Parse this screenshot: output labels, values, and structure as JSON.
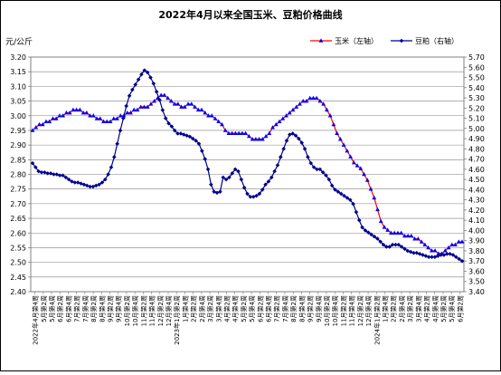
{
  "chart_data": {
    "type": "line",
    "title": "2022年4月以来全国玉米、豆粕价格曲线",
    "ylabel": "元/公斤",
    "y_left_ticks": [
      "3.20",
      "3.15",
      "3.10",
      "3.05",
      "3.00",
      "2.95",
      "2.90",
      "2.85",
      "2.80",
      "2.75",
      "2.70",
      "2.65",
      "2.60",
      "2.55",
      "2.50",
      "2.45",
      "2.40"
    ],
    "y_right_ticks": [
      "5.70",
      "5.60",
      "5.50",
      "5.40",
      "5.30",
      "5.20",
      "5.10",
      "5.00",
      "4.90",
      "4.80",
      "4.70",
      "4.60",
      "4.50",
      "4.40",
      "4.30",
      "4.20",
      "4.10",
      "4.00",
      "3.90",
      "3.80",
      "3.70",
      "3.60",
      "3.50",
      "3.40"
    ],
    "ylim_left": [
      2.4,
      3.2
    ],
    "ylim_right": [
      3.4,
      5.7
    ],
    "x_labels": [
      "2022年4月第4周",
      "5月第2周",
      "5月第4周",
      "6月第2周",
      "6月第4周",
      "7月第2周",
      "7月第4周",
      "8月第2周",
      "8月第4周",
      "9月第2周",
      "9月第4周",
      "10月第2周",
      "10月第4周",
      "11月第2周",
      "11月第4周",
      "12月第2周",
      "12月第4周",
      "2023年1月第2周",
      "1月第4周",
      "2月第2周",
      "2月第4周",
      "3月第2周",
      "3月第4周",
      "4月第2周",
      "4月第4周",
      "5月第2周",
      "5月第4周",
      "6月第2周",
      "6月第4周",
      "7月第2周",
      "7月第4周",
      "8月第2周",
      "8月第4周",
      "9月第2周",
      "9月第4周",
      "10月第2周",
      "10月第4周",
      "11月第2周",
      "11月第4周",
      "12月第2周",
      "12月第4周",
      "2024年1月第2周",
      "1月第4周",
      "2月第2周",
      "2月第4周",
      "3月第2周",
      "3月第4周",
      "4月第2周",
      "4月第4周",
      "5月第2周",
      "5月第4周",
      "6月第2周"
    ],
    "legend_position": "top-right",
    "series": [
      {
        "name": "玉米（左轴）",
        "axis": "left",
        "color": "#ff0000",
        "marker": "triangle",
        "values": [
          2.95,
          2.96,
          2.97,
          2.97,
          2.98,
          2.98,
          2.99,
          2.99,
          3.0,
          3.0,
          3.01,
          3.01,
          3.02,
          3.02,
          3.02,
          3.01,
          3.01,
          3.0,
          3.0,
          2.99,
          2.99,
          2.98,
          2.98,
          2.98,
          2.99,
          2.99,
          3.0,
          3.0,
          3.01,
          3.01,
          3.02,
          3.02,
          3.03,
          3.03,
          3.03,
          3.04,
          3.05,
          3.06,
          3.07,
          3.07,
          3.06,
          3.05,
          3.04,
          3.04,
          3.03,
          3.03,
          3.04,
          3.04,
          3.03,
          3.02,
          3.02,
          3.01,
          3.0,
          3.0,
          2.99,
          2.98,
          2.97,
          2.95,
          2.94,
          2.94,
          2.94,
          2.94,
          2.94,
          2.94,
          2.93,
          2.92,
          2.92,
          2.92,
          2.92,
          2.93,
          2.94,
          2.96,
          2.97,
          2.98,
          2.99,
          3.0,
          3.01,
          3.02,
          3.03,
          3.04,
          3.05,
          3.05,
          3.06,
          3.06,
          3.06,
          3.05,
          3.04,
          3.02,
          3.0,
          2.97,
          2.94,
          2.92,
          2.9,
          2.88,
          2.86,
          2.84,
          2.83,
          2.82,
          2.8,
          2.78,
          2.75,
          2.72,
          2.68,
          2.64,
          2.62,
          2.61,
          2.6,
          2.6,
          2.6,
          2.6,
          2.59,
          2.59,
          2.59,
          2.58,
          2.58,
          2.57,
          2.56,
          2.55,
          2.54,
          2.54,
          2.53,
          2.53,
          2.54,
          2.55,
          2.56,
          2.56,
          2.57,
          2.57
        ]
      },
      {
        "name": "豆粕（右轴）",
        "axis": "right",
        "color": "#00008b",
        "marker": "diamond",
        "values": [
          4.66,
          4.62,
          4.58,
          4.57,
          4.57,
          4.56,
          4.56,
          4.55,
          4.55,
          4.54,
          4.54,
          4.52,
          4.5,
          4.48,
          4.47,
          4.47,
          4.46,
          4.45,
          4.44,
          4.43,
          4.43,
          4.44,
          4.45,
          4.47,
          4.5,
          4.55,
          4.62,
          4.72,
          4.85,
          4.98,
          5.1,
          5.22,
          5.32,
          5.38,
          5.43,
          5.48,
          5.53,
          5.57,
          5.55,
          5.5,
          5.44,
          5.36,
          5.28,
          5.18,
          5.1,
          5.05,
          5.02,
          4.98,
          4.95,
          4.95,
          4.94,
          4.93,
          4.92,
          4.9,
          4.88,
          4.85,
          4.78,
          4.7,
          4.6,
          4.45,
          4.38,
          4.37,
          4.38,
          4.52,
          4.5,
          4.52,
          4.56,
          4.6,
          4.58,
          4.5,
          4.42,
          4.36,
          4.33,
          4.33,
          4.34,
          4.36,
          4.4,
          4.45,
          4.48,
          4.52,
          4.58,
          4.64,
          4.72,
          4.8,
          4.88,
          4.94,
          4.95,
          4.93,
          4.9,
          4.86,
          4.8,
          4.72,
          4.66,
          4.62,
          4.6,
          4.6,
          4.57,
          4.54,
          4.5,
          4.44,
          4.4,
          4.38,
          4.36,
          4.34,
          4.32,
          4.3,
          4.26,
          4.18,
          4.1,
          4.03,
          4.0,
          3.98,
          3.96,
          3.94,
          3.92,
          3.89,
          3.86,
          3.84,
          3.84,
          3.86,
          3.86,
          3.86,
          3.84,
          3.82,
          3.8,
          3.79,
          3.78,
          3.78,
          3.77,
          3.76,
          3.75,
          3.74,
          3.74,
          3.74,
          3.75,
          3.76,
          3.76,
          3.77,
          3.77,
          3.76,
          3.74,
          3.72,
          3.7
        ]
      }
    ]
  }
}
